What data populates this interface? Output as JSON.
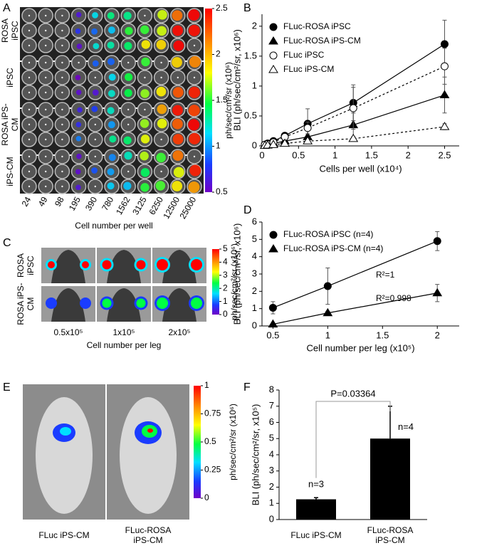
{
  "panels": [
    {
      "label": "A",
      "rows": [
        "ROSA iPSC",
        "iPSC",
        "ROSA iPS-CM",
        "iPS-CM"
      ],
      "columns": [
        "24",
        "49",
        "98",
        "195",
        "390",
        "780",
        "1562",
        "3125",
        "6250",
        "12500",
        "25000"
      ],
      "xlabel": "Cell number per well",
      "colorbar": {
        "label": "ph/sec/cm²/sr (x10⁶)",
        "lim": [
          0.5,
          2.5
        ],
        "ticks": [
          0.5,
          1,
          1.5,
          2,
          2.5
        ]
      }
    },
    {
      "label": "C",
      "rows": [
        "ROSA iPSC",
        "ROSA iPS-CM"
      ],
      "columns": [
        "0.5x10⁵",
        "1x10⁵",
        "2x10⁵"
      ],
      "xlabel": "Cell number per leg",
      "colorbar": {
        "label": "ph/sec/cm²/sr (x10⁶)",
        "lim": [
          0,
          5
        ],
        "ticks": [
          0,
          1,
          2,
          3,
          4,
          5
        ]
      }
    },
    {
      "label": "E",
      "columns": [
        "FLuc iPS-CM",
        "FLuc-ROSA iPS-CM"
      ],
      "colorbar": {
        "label": "ph/sec/cm²/sr (x10⁶)",
        "lim": [
          0,
          1
        ],
        "ticks": [
          0,
          0.25,
          0.5,
          0.75,
          1
        ]
      }
    }
  ],
  "chart_data": [
    {
      "type": "line",
      "panel_label": "B",
      "xlabel": "Cells per well (x10⁴)",
      "ylabel": "BLI (ph/sec/cm²/sr, x10⁶)",
      "x": [
        0.039,
        0.078,
        0.156,
        0.3125,
        0.625,
        1.25,
        2.5
      ],
      "xlim": [
        0,
        2.7
      ],
      "xticks": [
        0,
        0.5,
        1,
        1.5,
        2,
        2.5
      ],
      "ylim": [
        0,
        2.2
      ],
      "yticks": [
        0,
        0.5,
        1,
        1.5,
        2
      ],
      "legend": "upper left",
      "series": [
        {
          "name": "FLuc-ROSA iPSC",
          "color": "#000000",
          "marker": "circle",
          "filled": true,
          "dash": false,
          "values": [
            0.02,
            0.04,
            0.08,
            0.17,
            0.37,
            0.72,
            1.7
          ],
          "errors": [
            0.01,
            0.01,
            0.02,
            0.05,
            0.25,
            0.3,
            0.4
          ]
        },
        {
          "name": "FLuc-ROSA iPS-CM",
          "color": "#000000",
          "marker": "triangle",
          "filled": true,
          "dash": false,
          "values": [
            0.01,
            0.02,
            0.04,
            0.08,
            0.15,
            0.35,
            0.85
          ],
          "errors": [
            0.005,
            0.01,
            0.01,
            0.02,
            0.1,
            0.2,
            0.3
          ]
        },
        {
          "name": "FLuc iPSC",
          "color": "#000000",
          "marker": "circle",
          "filled": false,
          "dash": true,
          "values": [
            0.02,
            0.03,
            0.06,
            0.15,
            0.3,
            0.63,
            1.33
          ],
          "errors": [
            0.01,
            0.01,
            0.02,
            0.05,
            0.1,
            0.35,
            0.3
          ]
        },
        {
          "name": "FLuc iPS-CM",
          "color": "#000000",
          "marker": "triangle",
          "filled": false,
          "dash": true,
          "values": [
            0.005,
            0.01,
            0.02,
            0.04,
            0.08,
            0.12,
            0.32
          ],
          "errors": [
            0.003,
            0.005,
            0.01,
            0.01,
            0.02,
            0.03,
            0.05
          ]
        }
      ]
    },
    {
      "type": "line",
      "panel_label": "D",
      "xlabel": "Cell number per leg (x10⁵)",
      "ylabel": "BLI (ph/sec/cm²/sr, x10⁶)",
      "x": [
        0.5,
        1,
        2
      ],
      "xlim": [
        0.4,
        2.2
      ],
      "xticks": [
        0.5,
        1,
        1.5,
        2
      ],
      "ylim": [
        0,
        6
      ],
      "yticks": [
        0,
        1,
        2,
        3,
        4,
        5,
        6
      ],
      "legend": "upper left",
      "annotations": [
        "R²=1",
        "R²=0.998"
      ],
      "series": [
        {
          "name": "FLuc-ROSA iPSC (n=4)",
          "color": "#000000",
          "marker": "circle",
          "filled": true,
          "dash": false,
          "values": [
            1.05,
            2.3,
            4.9
          ],
          "errors": [
            0.35,
            1.05,
            0.55
          ]
        },
        {
          "name": "FLuc-ROSA iPS-CM (n=4)",
          "color": "#000000",
          "marker": "triangle",
          "filled": true,
          "dash": false,
          "values": [
            0.1,
            0.75,
            1.9
          ],
          "errors": [
            0.05,
            0.1,
            0.5
          ]
        }
      ]
    },
    {
      "type": "bar",
      "panel_label": "F",
      "ylabel": "BLI (ph/sec/cm²/sr, x10⁵)",
      "categories": [
        "FLuc iPS-CM",
        "FLuc-ROSA iPS-CM"
      ],
      "values": [
        1.25,
        5.0
      ],
      "errors": [
        0.1,
        2.0
      ],
      "color": "#000000",
      "ylim": [
        0,
        8
      ],
      "yticks": [
        0,
        1,
        2,
        3,
        4,
        5,
        6,
        7,
        8
      ],
      "annotations": [
        "n=3",
        "n=4"
      ],
      "pvalue": "P=0.03364"
    }
  ]
}
